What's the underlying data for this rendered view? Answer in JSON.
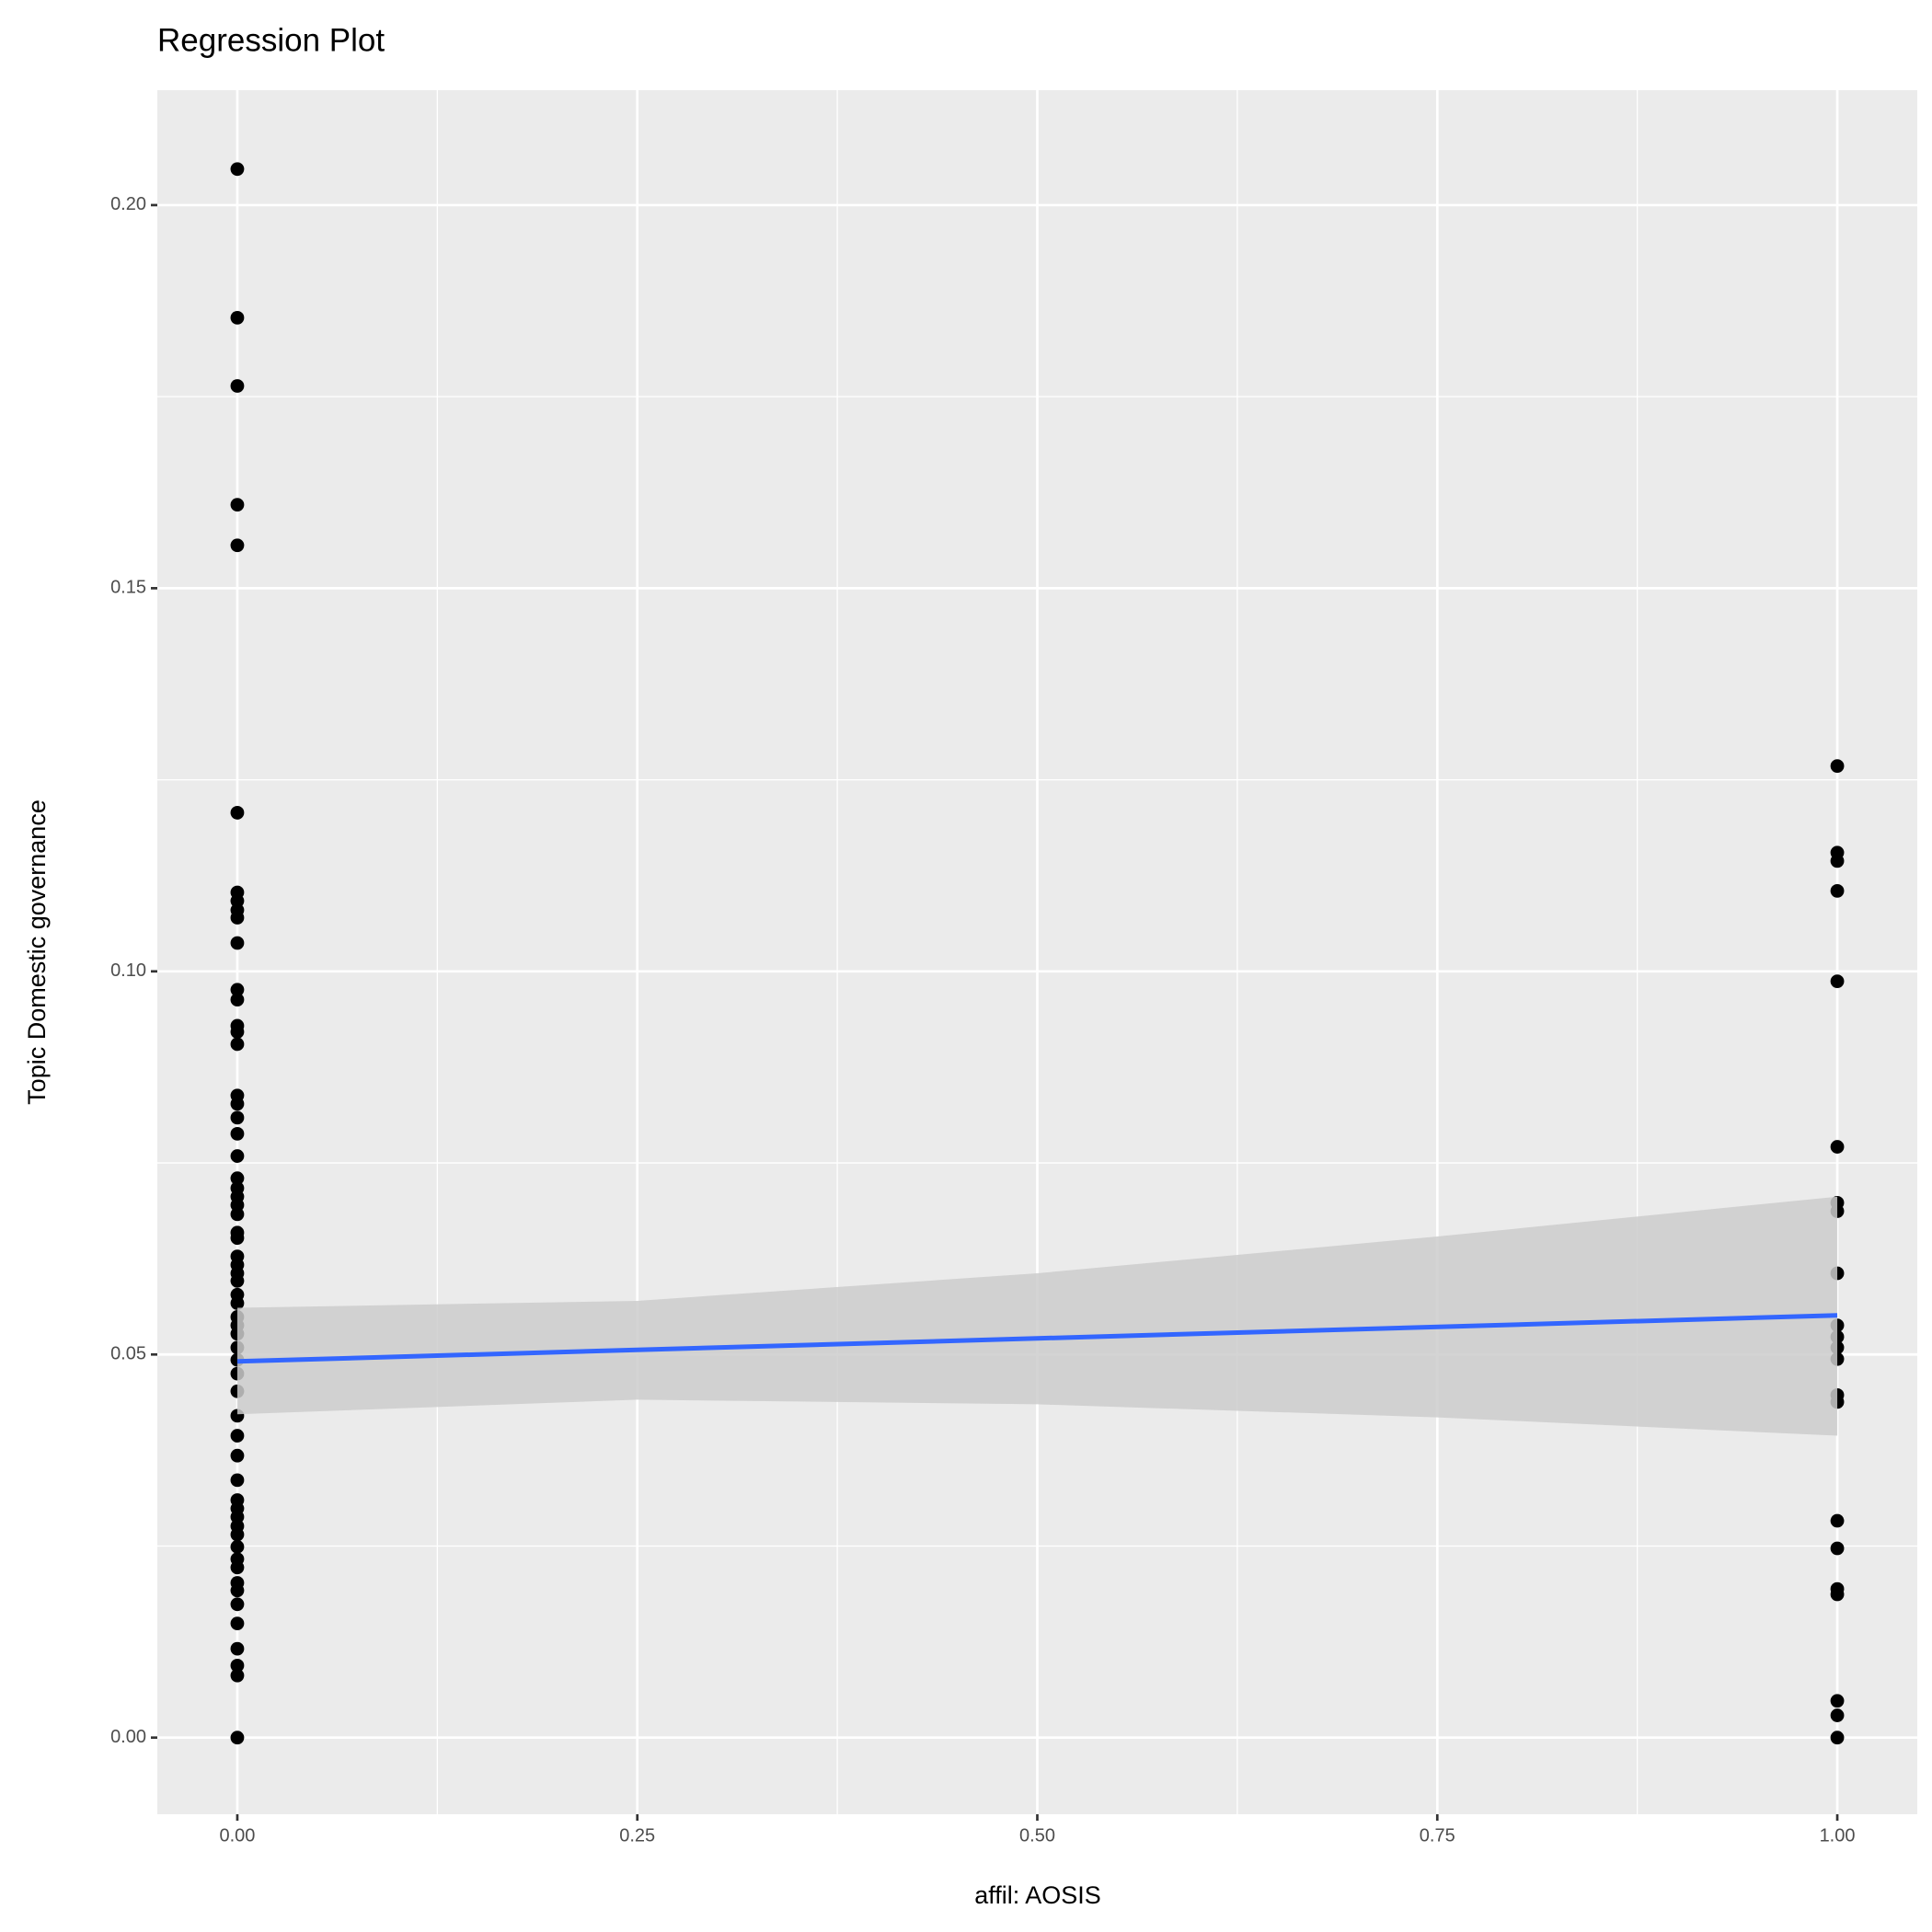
{
  "chart_data": {
    "type": "scatter",
    "title": "Regression Plot",
    "xlabel": "affil: AOSIS",
    "ylabel": "Topic Domestic governance",
    "xlim": [
      -0.05,
      1.05
    ],
    "ylim": [
      -0.01,
      0.215
    ],
    "xticks": [
      {
        "value": 0,
        "label": "0.00"
      },
      {
        "value": 0.25,
        "label": "0.25"
      },
      {
        "value": 0.5,
        "label": "0.50"
      },
      {
        "value": 0.75,
        "label": "0.75"
      },
      {
        "value": 1,
        "label": "1.00"
      }
    ],
    "yticks": [
      {
        "value": 0,
        "label": "0.00"
      },
      {
        "value": 0.05,
        "label": "0.05"
      },
      {
        "value": 0.1,
        "label": "0.10"
      },
      {
        "value": 0.15,
        "label": "0.15"
      },
      {
        "value": 0.2,
        "label": "0.20"
      }
    ],
    "x_minor_grid": [
      0.125,
      0.375,
      0.625,
      0.875
    ],
    "y_minor_grid": [
      0.025,
      0.075,
      0.125,
      0.175
    ],
    "grid": true,
    "panel_color": "#ebebeb",
    "points": {
      "color": "#000000",
      "x": [
        0,
        0,
        0,
        0,
        0,
        0,
        0,
        0,
        0,
        0,
        0,
        0,
        0,
        0,
        0,
        0,
        0,
        0,
        0,
        0,
        0,
        0,
        0,
        0,
        0,
        0,
        0,
        0,
        0,
        0,
        0,
        0,
        0,
        0,
        0,
        0,
        0,
        0,
        0,
        0,
        0,
        0,
        0,
        0,
        0,
        0,
        0,
        0,
        0,
        0,
        0,
        0,
        0,
        0,
        0,
        0,
        0,
        0,
        0,
        0,
        0,
        1,
        1,
        1,
        1,
        1,
        1,
        1,
        1,
        1,
        1,
        1,
        1,
        1,
        1,
        1,
        1,
        1,
        1,
        1,
        1,
        1,
        1
      ],
      "y": [
        0.2047,
        0.1853,
        0.1764,
        0.1609,
        0.1556,
        0.1207,
        0.1103,
        0.1092,
        0.108,
        0.107,
        0.1037,
        0.0976,
        0.0963,
        0.0929,
        0.0921,
        0.0905,
        0.0838,
        0.0827,
        0.0809,
        0.0788,
        0.0759,
        0.073,
        0.0717,
        0.0706,
        0.0695,
        0.0683,
        0.0659,
        0.0652,
        0.0628,
        0.0617,
        0.0606,
        0.0596,
        0.0578,
        0.0567,
        0.0549,
        0.0538,
        0.0527,
        0.0509,
        0.0493,
        0.0475,
        0.0452,
        0.042,
        0.0394,
        0.0368,
        0.0336,
        0.031,
        0.0299,
        0.0288,
        0.0276,
        0.0265,
        0.0249,
        0.0233,
        0.0222,
        0.0202,
        0.0192,
        0.0174,
        0.0149,
        0.0116,
        0.0094,
        0.0081,
        0,
        0.1268,
        0.1155,
        0.1144,
        0.1105,
        0.0987,
        0.0771,
        0.0698,
        0.0687,
        0.0606,
        0.0538,
        0.0523,
        0.0509,
        0.0494,
        0.0447,
        0.0438,
        0.0283,
        0.0247,
        0.0194,
        0.0187,
        0.0048,
        0.0029,
        0
      ]
    },
    "fit": {
      "color": "#3366ff",
      "x": [
        0,
        1
      ],
      "y": [
        0.0491,
        0.0551
      ]
    },
    "band": {
      "color": "#cccccc",
      "x": [
        0,
        0.25,
        0.5,
        0.75,
        1
      ],
      "upper": [
        0.0561,
        0.057,
        0.0606,
        0.0654,
        0.0706
      ],
      "lower": [
        0.0422,
        0.0441,
        0.0435,
        0.0418,
        0.0394
      ]
    }
  }
}
